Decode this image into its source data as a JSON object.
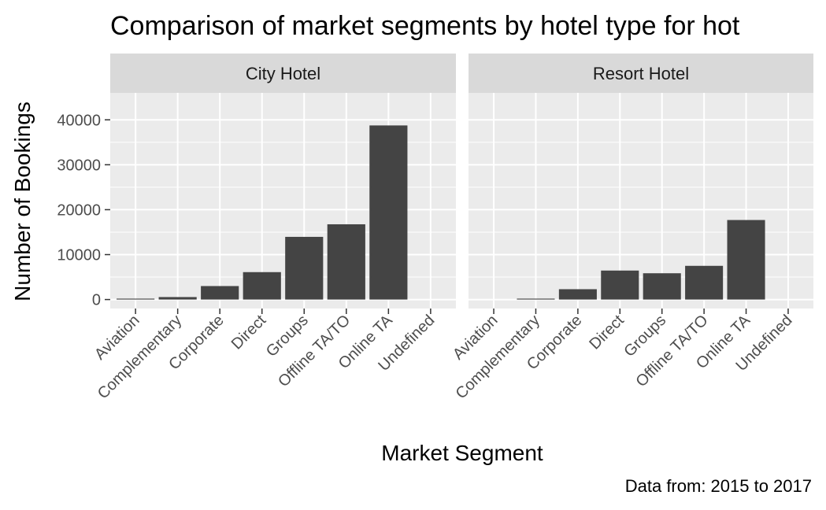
{
  "chart_data": {
    "type": "bar",
    "title": "Comparison of market segments by hotel type for hot",
    "xlabel": "Market Segment",
    "ylabel": "Number of Bookings",
    "caption": "Data from: 2015 to 2017",
    "categories": [
      "Aviation",
      "Complementary",
      "Corporate",
      "Direct",
      "Groups",
      "Offline TA/TO",
      "Online TA",
      "Undefined"
    ],
    "ylim": [
      -2000,
      46000
    ],
    "yticks": [
      0,
      10000,
      20000,
      30000,
      40000
    ],
    "ytick_labels": [
      "0",
      "10000",
      "20000",
      "30000",
      "40000"
    ],
    "grid": true,
    "legend": "none",
    "colors": {
      "bar": "#444444",
      "panel": "#ebebeb",
      "strip": "#d9d9d9",
      "grid": "#ffffff"
    },
    "facets": [
      {
        "name": "City Hotel",
        "values": [
          200,
          550,
          3000,
          6100,
          13950,
          16750,
          38750,
          0
        ]
      },
      {
        "name": "Resort Hotel",
        "values": [
          0,
          200,
          2300,
          6450,
          5850,
          7500,
          17700,
          0
        ]
      }
    ]
  }
}
